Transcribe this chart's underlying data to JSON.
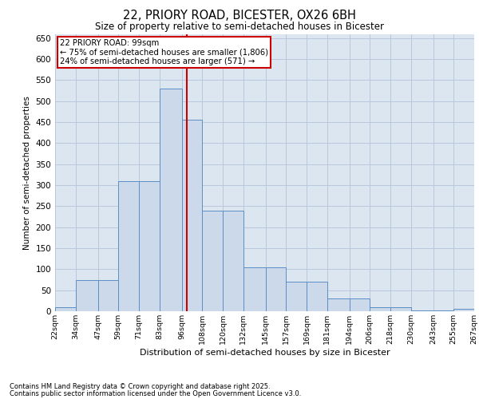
{
  "title1": "22, PRIORY ROAD, BICESTER, OX26 6BH",
  "title2": "Size of property relative to semi-detached houses in Bicester",
  "xlabel": "Distribution of semi-detached houses by size in Bicester",
  "ylabel": "Number of semi-detached properties",
  "footnote1": "Contains HM Land Registry data © Crown copyright and database right 2025.",
  "footnote2": "Contains public sector information licensed under the Open Government Licence v3.0.",
  "bar_left_edges": [
    22,
    34,
    47,
    59,
    71,
    83,
    96,
    108,
    120,
    132,
    145,
    157,
    169,
    181,
    194,
    206,
    218,
    230,
    243,
    255
  ],
  "bar_widths": [
    12,
    13,
    12,
    12,
    12,
    13,
    12,
    12,
    12,
    13,
    12,
    12,
    12,
    13,
    12,
    12,
    12,
    13,
    12,
    12
  ],
  "bar_heights": [
    10,
    75,
    75,
    310,
    310,
    530,
    455,
    240,
    240,
    105,
    105,
    70,
    70,
    30,
    30,
    10,
    10,
    2,
    2,
    5
  ],
  "bar_color": "#ccd9ea",
  "bar_edge_color": "#5b8ec4",
  "grid_color": "#b8c8dc",
  "background_color": "#dce6f1",
  "subject_line_x": 99,
  "subject_line_color": "#cc0000",
  "annotation_text": "22 PRIORY ROAD: 99sqm\n← 75% of semi-detached houses are smaller (1,806)\n24% of semi-detached houses are larger (571) →",
  "annotation_box_color": "#cc0000",
  "ylim": [
    0,
    660
  ],
  "yticks": [
    0,
    50,
    100,
    150,
    200,
    250,
    300,
    350,
    400,
    450,
    500,
    550,
    600,
    650
  ],
  "tick_labels": [
    "22sqm",
    "34sqm",
    "47sqm",
    "59sqm",
    "71sqm",
    "83sqm",
    "96sqm",
    "108sqm",
    "120sqm",
    "132sqm",
    "145sqm",
    "157sqm",
    "169sqm",
    "181sqm",
    "194sqm",
    "206sqm",
    "218sqm",
    "230sqm",
    "243sqm",
    "255sqm",
    "267sqm"
  ],
  "xlim": [
    22,
    267
  ]
}
